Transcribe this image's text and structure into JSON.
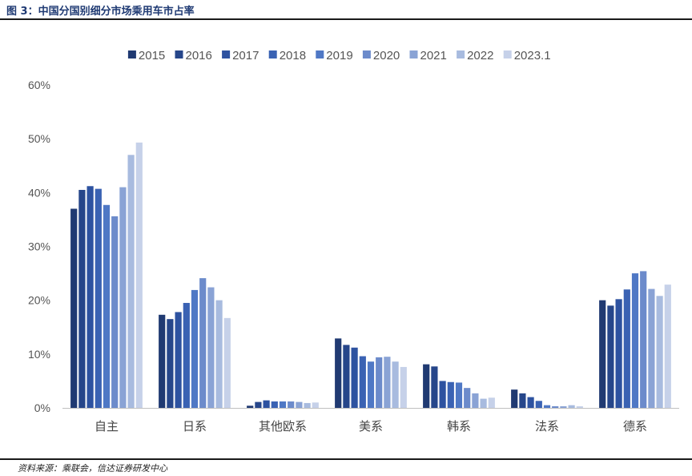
{
  "figure_title": "图 3：中国分国别细分市场乘用车市占率",
  "source": "资料来源：乘联会，信达证券研发中心",
  "chart_data": {
    "type": "bar",
    "categories": [
      "自主",
      "日系",
      "其他欧系",
      "美系",
      "韩系",
      "法系",
      "德系"
    ],
    "ylim": [
      0,
      60
    ],
    "yticks": [
      "0%",
      "10%",
      "20%",
      "30%",
      "40%",
      "50%",
      "60%"
    ],
    "legend_position": "top",
    "grid": false,
    "series": [
      {
        "name": "2015",
        "color": "#203a72",
        "values": [
          37.0,
          17.3,
          0.4,
          12.9,
          8.1,
          3.4,
          20.0
        ]
      },
      {
        "name": "2016",
        "color": "#26468a",
        "values": [
          40.5,
          16.5,
          1.1,
          11.7,
          7.7,
          2.7,
          19.0
        ]
      },
      {
        "name": "2017",
        "color": "#2d52a0",
        "values": [
          41.2,
          17.8,
          1.4,
          11.2,
          5.0,
          2.0,
          20.2
        ]
      },
      {
        "name": "2018",
        "color": "#3a62b3",
        "values": [
          40.7,
          19.5,
          1.2,
          9.6,
          4.8,
          1.3,
          22.0
        ]
      },
      {
        "name": "2019",
        "color": "#4f78c5",
        "values": [
          37.7,
          21.9,
          1.2,
          8.6,
          4.7,
          0.5,
          25.0
        ]
      },
      {
        "name": "2020",
        "color": "#6c8bcb",
        "values": [
          35.6,
          24.1,
          1.2,
          9.4,
          3.7,
          0.3,
          25.4
        ]
      },
      {
        "name": "2021",
        "color": "#8aa3d5",
        "values": [
          41.0,
          22.4,
          1.1,
          9.5,
          2.7,
          0.3,
          22.1
        ]
      },
      {
        "name": "2022",
        "color": "#a8bbdf",
        "values": [
          47.0,
          20.0,
          0.9,
          8.6,
          1.7,
          0.5,
          20.8
        ]
      },
      {
        "name": "2023.1",
        "color": "#c6d1e9",
        "values": [
          49.3,
          16.7,
          1.0,
          7.6,
          1.9,
          0.3,
          22.9
        ]
      }
    ]
  }
}
